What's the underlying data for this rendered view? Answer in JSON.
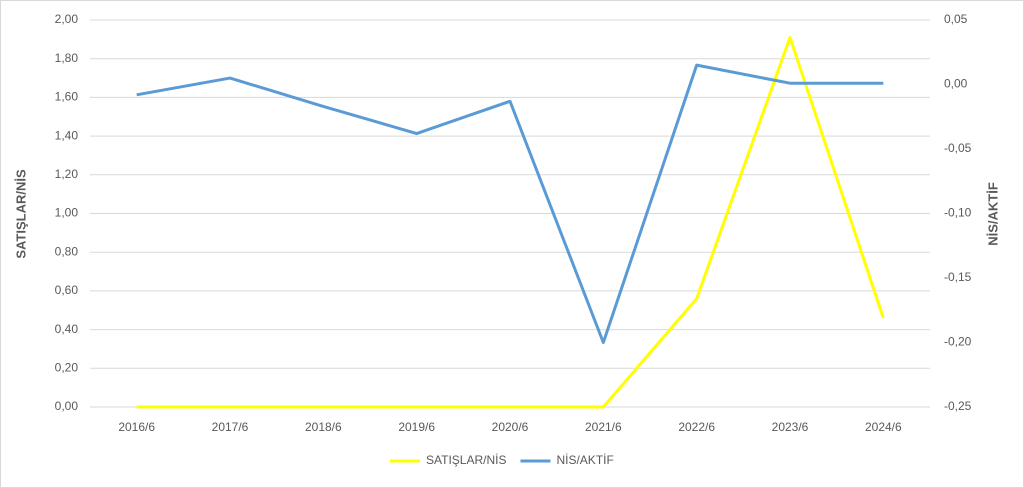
{
  "chart_data": {
    "type": "line",
    "categories": [
      "2016/6",
      "2017/6",
      "2018/6",
      "2019/6",
      "2020/6",
      "2021/6",
      "2022/6",
      "2023/6",
      "2024/6"
    ],
    "y_label": "SATIŞLAR/NİS",
    "y2_label": "NİS/AKTİF",
    "series": [
      {
        "name": "SATIŞLAR/NİS",
        "color": "#ffff00",
        "values": [
          0,
          0,
          0,
          0,
          0,
          0,
          0.56,
          1.91,
          0.46
        ]
      },
      {
        "name": "NİS/AKTİF",
        "color": "#5b9bd5",
        "axis": "y2",
        "values": [
          -0.008,
          0.005,
          -0.017,
          -0.038,
          -0.013,
          -0.2,
          0.015,
          0.001,
          0.001
        ]
      }
    ],
    "ylim": [
      0,
      2
    ],
    "yticks": [
      {
        "value": 0,
        "label": "0,00"
      },
      {
        "value": 0.2,
        "label": "0,20"
      },
      {
        "value": 0.4,
        "label": "0,40"
      },
      {
        "value": 0.6,
        "label": "0,60"
      },
      {
        "value": 0.8,
        "label": "0,80"
      },
      {
        "value": 1,
        "label": "1,00"
      },
      {
        "value": 1.2,
        "label": "1,20"
      },
      {
        "value": 1.4,
        "label": "1,40"
      },
      {
        "value": 1.6,
        "label": "1,60"
      },
      {
        "value": 1.8,
        "label": "1,80"
      },
      {
        "value": 2,
        "label": "2,00"
      }
    ],
    "y2lim": [
      -0.25,
      0.05
    ],
    "y2ticks": [
      {
        "value": -0.25,
        "label": "-0,25"
      },
      {
        "value": -0.2,
        "label": "-0,20"
      },
      {
        "value": -0.15,
        "label": "-0,15"
      },
      {
        "value": -0.1,
        "label": "-0,10"
      },
      {
        "value": -0.05,
        "label": "-0,05"
      },
      {
        "value": 0,
        "label": "0,00"
      },
      {
        "value": 0.05,
        "label": "0,05"
      }
    ],
    "grid": true,
    "legend": "bottom"
  }
}
